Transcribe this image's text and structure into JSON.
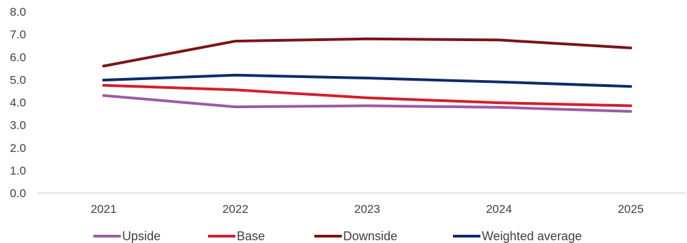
{
  "chart_data": {
    "type": "line",
    "title": "",
    "xlabel": "",
    "ylabel": "",
    "categories": [
      "2021",
      "2022",
      "2023",
      "2024",
      "2025"
    ],
    "ylim": [
      0,
      8
    ],
    "y_ticks": [
      "0.0",
      "1.0",
      "2.0",
      "3.0",
      "4.0",
      "5.0",
      "6.0",
      "7.0",
      "8.0"
    ],
    "grid": false,
    "legend_position": "bottom",
    "series": [
      {
        "name": "Upside",
        "color": "#9b5ba5",
        "values": [
          4.3,
          3.8,
          3.85,
          3.78,
          3.6
        ]
      },
      {
        "name": "Base",
        "color": "#d0202e",
        "values": [
          4.75,
          4.55,
          4.2,
          3.98,
          3.85
        ]
      },
      {
        "name": "Downside",
        "color": "#7b1416",
        "values": [
          5.6,
          6.7,
          6.8,
          6.75,
          6.4
        ]
      },
      {
        "name": "Weighted average",
        "color": "#0e2a6b",
        "values": [
          4.98,
          5.2,
          5.07,
          4.9,
          4.7
        ]
      }
    ]
  }
}
